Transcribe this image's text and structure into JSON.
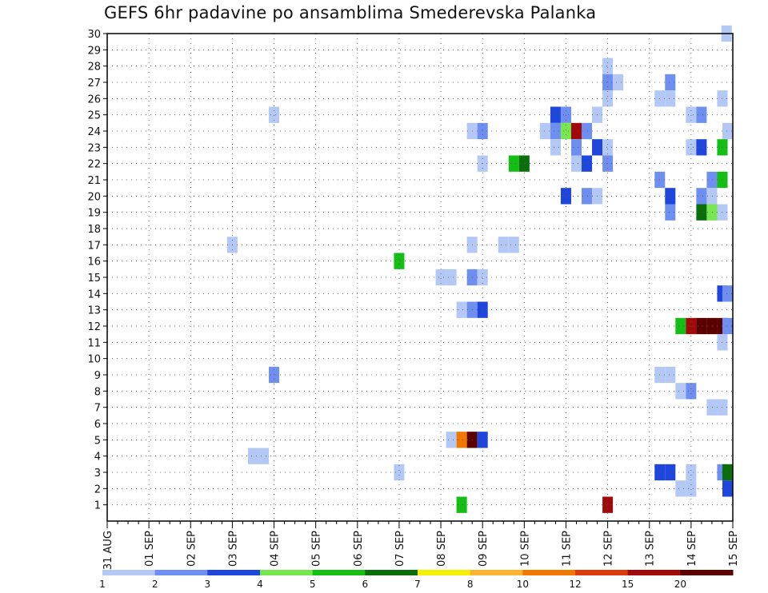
{
  "chart_data": {
    "type": "heatmap",
    "title": "GEFS 6hr padavine po ansamblima Smederevska Palanka",
    "xlabel": "",
    "ylabel": "",
    "x_ticks": [
      "31 AUG",
      "01 SEP",
      "02 SEP",
      "03 SEP",
      "04 SEP",
      "05 SEP",
      "06 SEP",
      "07 SEP",
      "08 SEP",
      "09 SEP",
      "10 SEP",
      "11 SEP",
      "12 SEP",
      "13 SEP",
      "14 SEP",
      "15 SEP"
    ],
    "y_ticks": [
      1,
      2,
      3,
      4,
      5,
      6,
      7,
      8,
      9,
      10,
      11,
      12,
      13,
      14,
      15,
      16,
      17,
      18,
      19,
      20,
      21,
      22,
      23,
      24,
      25,
      26,
      27,
      28,
      29,
      30
    ],
    "xlim": [
      0,
      15
    ],
    "ylim": [
      0,
      30
    ],
    "grid": true,
    "legend": {
      "placement": "bottom",
      "boundaries": [
        "1",
        "2",
        "3",
        "4",
        "5",
        "6",
        "7",
        "8",
        "10",
        "12",
        "15",
        "20"
      ],
      "colors": [
        "#b4c8f5",
        "#6e8ff0",
        "#1e46dc",
        "#78e650",
        "#14be14",
        "#0a6e0a",
        "#f5f000",
        "#fab432",
        "#f07800",
        "#dc3c0a",
        "#a00a0a",
        "#5a0000"
      ]
    },
    "cells": [
      {
        "day": 14.85,
        "member": 30,
        "level": 1
      },
      {
        "day": 12.0,
        "member": 28,
        "level": 1
      },
      {
        "day": 12.0,
        "member": 27,
        "level": 2
      },
      {
        "day": 12.25,
        "member": 27,
        "level": 1
      },
      {
        "day": 13.5,
        "member": 27,
        "level": 2
      },
      {
        "day": 12.0,
        "member": 26,
        "level": 1
      },
      {
        "day": 13.25,
        "member": 26,
        "level": 1
      },
      {
        "day": 13.5,
        "member": 26,
        "level": 1
      },
      {
        "day": 14.75,
        "member": 26,
        "level": 1
      },
      {
        "day": 4.0,
        "member": 25,
        "level": 1
      },
      {
        "day": 10.75,
        "member": 25,
        "level": 3
      },
      {
        "day": 11.0,
        "member": 25,
        "level": 2
      },
      {
        "day": 11.75,
        "member": 25,
        "level": 1
      },
      {
        "day": 14.0,
        "member": 25,
        "level": 1
      },
      {
        "day": 14.25,
        "member": 25,
        "level": 2
      },
      {
        "day": 8.75,
        "member": 24,
        "level": 1
      },
      {
        "day": 9.0,
        "member": 24,
        "level": 2
      },
      {
        "day": 10.5,
        "member": 24,
        "level": 1
      },
      {
        "day": 10.75,
        "member": 24,
        "level": 2
      },
      {
        "day": 11.0,
        "member": 24,
        "level": 4
      },
      {
        "day": 11.25,
        "member": 24,
        "level": 11
      },
      {
        "day": 11.5,
        "member": 24,
        "level": 2
      },
      {
        "day": 15.0,
        "member": 24,
        "level": 1
      },
      {
        "day": 10.75,
        "member": 23,
        "level": 1
      },
      {
        "day": 11.25,
        "member": 23,
        "level": 2
      },
      {
        "day": 11.75,
        "member": 23,
        "level": 3
      },
      {
        "day": 12.0,
        "member": 23,
        "level": 1
      },
      {
        "day": 14.0,
        "member": 23,
        "level": 1
      },
      {
        "day": 14.25,
        "member": 23,
        "level": 3
      },
      {
        "day": 14.75,
        "member": 23,
        "level": 5
      },
      {
        "day": 9.0,
        "member": 22,
        "level": 1
      },
      {
        "day": 9.75,
        "member": 22,
        "level": 5
      },
      {
        "day": 10.0,
        "member": 22,
        "level": 6
      },
      {
        "day": 11.25,
        "member": 22,
        "level": 1
      },
      {
        "day": 11.5,
        "member": 22,
        "level": 3
      },
      {
        "day": 12.0,
        "member": 22,
        "level": 2
      },
      {
        "day": 13.25,
        "member": 21,
        "level": 2
      },
      {
        "day": 14.5,
        "member": 21,
        "level": 2
      },
      {
        "day": 14.75,
        "member": 21,
        "level": 5
      },
      {
        "day": 11.0,
        "member": 20,
        "level": 3
      },
      {
        "day": 11.5,
        "member": 20,
        "level": 2
      },
      {
        "day": 11.75,
        "member": 20,
        "level": 1
      },
      {
        "day": 13.5,
        "member": 20,
        "level": 3
      },
      {
        "day": 14.25,
        "member": 20,
        "level": 2
      },
      {
        "day": 14.5,
        "member": 20,
        "level": 1
      },
      {
        "day": 13.5,
        "member": 19,
        "level": 2
      },
      {
        "day": 14.25,
        "member": 19,
        "level": 6
      },
      {
        "day": 14.5,
        "member": 19,
        "level": 4
      },
      {
        "day": 14.75,
        "member": 19,
        "level": 1
      },
      {
        "day": 3.0,
        "member": 17,
        "level": 1
      },
      {
        "day": 8.75,
        "member": 17,
        "level": 1
      },
      {
        "day": 9.5,
        "member": 17,
        "level": 1
      },
      {
        "day": 9.75,
        "member": 17,
        "level": 1
      },
      {
        "day": 7.0,
        "member": 16,
        "level": 5
      },
      {
        "day": 8.0,
        "member": 15,
        "level": 1
      },
      {
        "day": 8.25,
        "member": 15,
        "level": 1
      },
      {
        "day": 8.75,
        "member": 15,
        "level": 2
      },
      {
        "day": 9.0,
        "member": 15,
        "level": 1
      },
      {
        "day": 14.75,
        "member": 14,
        "level": 3
      },
      {
        "day": 15.0,
        "member": 14,
        "level": 2
      },
      {
        "day": 8.5,
        "member": 13,
        "level": 1
      },
      {
        "day": 8.75,
        "member": 13,
        "level": 2
      },
      {
        "day": 9.0,
        "member": 13,
        "level": 3
      },
      {
        "day": 13.75,
        "member": 12,
        "level": 5
      },
      {
        "day": 14.0,
        "member": 12,
        "level": 11
      },
      {
        "day": 14.25,
        "member": 12,
        "level": 12
      },
      {
        "day": 14.5,
        "member": 12,
        "level": 12
      },
      {
        "day": 14.75,
        "member": 12,
        "level": 12
      },
      {
        "day": 15.0,
        "member": 12,
        "level": 2
      },
      {
        "day": 14.75,
        "member": 11,
        "level": 1
      },
      {
        "day": 4.0,
        "member": 9,
        "level": 2
      },
      {
        "day": 13.25,
        "member": 9,
        "level": 1
      },
      {
        "day": 13.5,
        "member": 9,
        "level": 1
      },
      {
        "day": 13.75,
        "member": 8,
        "level": 1
      },
      {
        "day": 14.0,
        "member": 8,
        "level": 2
      },
      {
        "day": 14.5,
        "member": 7,
        "level": 1
      },
      {
        "day": 14.75,
        "member": 7,
        "level": 1
      },
      {
        "day": 8.25,
        "member": 5,
        "level": 1
      },
      {
        "day": 8.5,
        "member": 5,
        "level": 9
      },
      {
        "day": 8.75,
        "member": 5,
        "level": 12
      },
      {
        "day": 9.0,
        "member": 5,
        "level": 3
      },
      {
        "day": 3.5,
        "member": 4,
        "level": 1
      },
      {
        "day": 3.75,
        "member": 4,
        "level": 1
      },
      {
        "day": 7.0,
        "member": 3,
        "level": 1
      },
      {
        "day": 13.25,
        "member": 3,
        "level": 3
      },
      {
        "day": 13.5,
        "member": 3,
        "level": 3
      },
      {
        "day": 14.0,
        "member": 3,
        "level": 1
      },
      {
        "day": 14.75,
        "member": 3,
        "level": 2
      },
      {
        "day": 15.0,
        "member": 3,
        "level": 6
      },
      {
        "day": 13.75,
        "member": 2,
        "level": 1
      },
      {
        "day": 14.0,
        "member": 2,
        "level": 1
      },
      {
        "day": 15.0,
        "member": 2,
        "level": 3
      },
      {
        "day": 8.5,
        "member": 1,
        "level": 5
      },
      {
        "day": 12.0,
        "member": 1,
        "level": 11
      }
    ]
  }
}
